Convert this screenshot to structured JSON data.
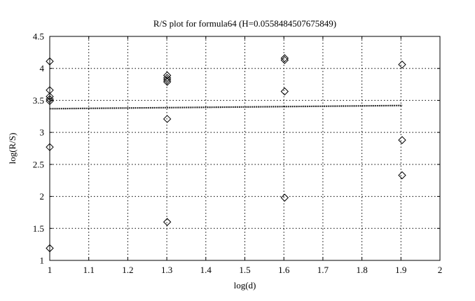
{
  "chart_data": {
    "type": "scatter",
    "title": "R/S plot for formula64 (H=0.0558484507675849)",
    "xlabel": "log(d)",
    "ylabel": "log(R/S)",
    "xlim": [
      1,
      2
    ],
    "ylim": [
      1,
      4.5
    ],
    "xticks": [
      1,
      1.1,
      1.2,
      1.3,
      1.4,
      1.5,
      1.6,
      1.7,
      1.8,
      1.9,
      2
    ],
    "xtick_labels": [
      "1",
      "1.1",
      "1.2",
      "1.3",
      "1.4",
      "1.5",
      "1.6",
      "1.7",
      "1.8",
      "1.9",
      "2"
    ],
    "yticks": [
      1,
      1.5,
      2,
      2.5,
      3,
      3.5,
      4,
      4.5
    ],
    "ytick_labels": [
      "1",
      "1.5",
      "2",
      "2.5",
      "3",
      "3.5",
      "4",
      "4.5"
    ],
    "grid": true,
    "marker": "diamond",
    "points": [
      {
        "x": 1.0,
        "y": 4.11
      },
      {
        "x": 1.0,
        "y": 3.66
      },
      {
        "x": 1.0,
        "y": 3.56
      },
      {
        "x": 1.0,
        "y": 3.52
      },
      {
        "x": 1.0,
        "y": 3.49
      },
      {
        "x": 1.0,
        "y": 2.77
      },
      {
        "x": 1.0,
        "y": 1.19
      },
      {
        "x": 1.301,
        "y": 3.89
      },
      {
        "x": 1.301,
        "y": 3.85
      },
      {
        "x": 1.301,
        "y": 3.82
      },
      {
        "x": 1.301,
        "y": 3.79
      },
      {
        "x": 1.301,
        "y": 3.21
      },
      {
        "x": 1.301,
        "y": 1.6
      },
      {
        "x": 1.602,
        "y": 4.16
      },
      {
        "x": 1.602,
        "y": 4.13
      },
      {
        "x": 1.602,
        "y": 3.64
      },
      {
        "x": 1.602,
        "y": 1.98
      },
      {
        "x": 1.903,
        "y": 4.06
      },
      {
        "x": 1.903,
        "y": 2.88
      },
      {
        "x": 1.903,
        "y": 2.33
      }
    ],
    "fit_line": {
      "x": [
        1.0,
        1.903
      ],
      "y": [
        3.37,
        3.42
      ]
    }
  }
}
